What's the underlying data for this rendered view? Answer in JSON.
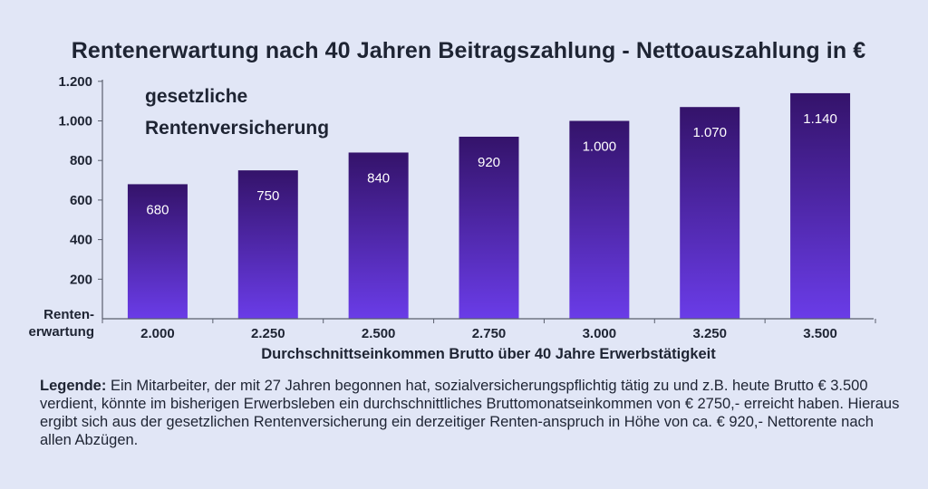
{
  "chart_data": {
    "type": "bar",
    "title": "Rentenerwartung nach 40 Jahren Beitragszahlung - Nettoauszahlung in €",
    "annotation": [
      "gesetzliche",
      "Rentenversicherung"
    ],
    "ylabel": [
      "Renten-",
      "erwartung"
    ],
    "xlabel": "Durchschnittseinkommen Brutto über 40 Jahre Erwerbstätigkeit",
    "categories": [
      "2.000",
      "2.250",
      "2.500",
      "2.750",
      "3.000",
      "3.250",
      "3.500"
    ],
    "values": [
      680,
      750,
      840,
      920,
      1000,
      1070,
      1140
    ],
    "value_labels": [
      "680",
      "750",
      "840",
      "920",
      "1.000",
      "1.070",
      "1.140"
    ],
    "ylim": [
      0,
      1200
    ],
    "yticks": [
      200,
      400,
      600,
      800,
      1000,
      1200
    ],
    "ytick_labels": [
      "200",
      "400",
      "600",
      "800",
      "1.000",
      "1.200"
    ],
    "grid": false,
    "colors": {
      "bar_top": "#34136a",
      "bar_bottom": "#6a3ce8",
      "axis": "#5a5f6e"
    }
  },
  "legend": {
    "label": "Legende:",
    "text": "Ein Mitarbeiter, der mit 27 Jahren begonnen hat, sozialversicherungspflichtig tätig zu und z.B. heute Brutto € 3.500 verdient, könnte im bisherigen Erwerbsleben ein durchschnittliches Bruttomonatseinkommen von € 2750,- erreicht haben. Hieraus ergibt sich aus der gesetzlichen Rentenversicherung ein derzeitiger Renten-anspruch in Höhe von ca. € 920,- Nettorente nach allen Abzügen."
  }
}
